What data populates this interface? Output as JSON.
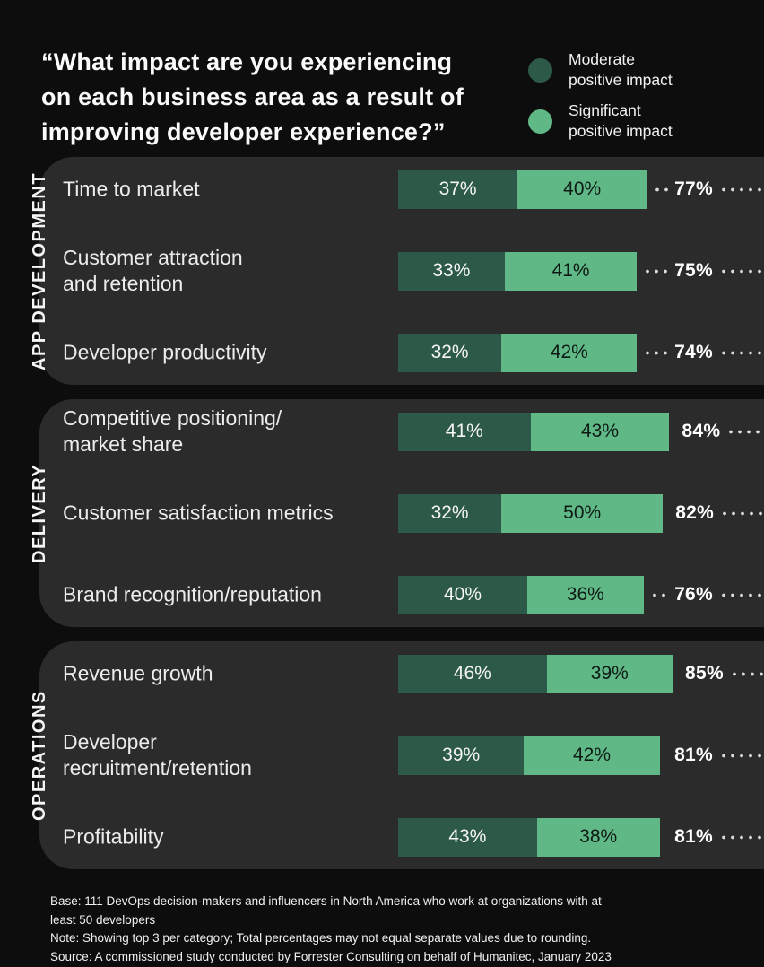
{
  "title": "“What impact are you experiencing\non each business area as a result of\nimproving developer experience?”",
  "legend": {
    "items": [
      {
        "icon": "moderate-swatch-circle",
        "label": "Moderate\npositive impact",
        "color": "#2d5a48"
      },
      {
        "icon": "significant-swatch-circle",
        "label": "Significant\npositive impact",
        "color": "#5fb886"
      }
    ]
  },
  "chart_data": {
    "type": "bar",
    "subtype": "horizontal-stacked",
    "unit": "percent",
    "axis_range": [
      0,
      100
    ],
    "grid": false,
    "legend_position": "top-right",
    "series_names": [
      "Moderate positive impact",
      "Significant positive impact"
    ],
    "series_colors": [
      "#2d5a48",
      "#5fb886"
    ],
    "groups": [
      {
        "name": "APP DEVELOPMENT",
        "rows": [
          {
            "label": "Time to market",
            "values": [
              37,
              40
            ],
            "value_labels": [
              "37%",
              "40%"
            ],
            "total": 77,
            "total_label": "77%"
          },
          {
            "label": "Customer attraction\nand retention",
            "values": [
              33,
              41
            ],
            "value_labels": [
              "33%",
              "41%"
            ],
            "total": 75,
            "total_label": "75%"
          },
          {
            "label": "Developer productivity",
            "values": [
              32,
              42
            ],
            "value_labels": [
              "32%",
              "42%"
            ],
            "total": 74,
            "total_label": "74%"
          }
        ]
      },
      {
        "name": "DELIVERY",
        "rows": [
          {
            "label": "Competitive positioning/\nmarket share",
            "values": [
              41,
              43
            ],
            "value_labels": [
              "41%",
              "43%"
            ],
            "total": 84,
            "total_label": "84%"
          },
          {
            "label": "Customer satisfaction metrics",
            "values": [
              32,
              50
            ],
            "value_labels": [
              "32%",
              "50%"
            ],
            "total": 82,
            "total_label": "82%"
          },
          {
            "label": "Brand recognition/reputation",
            "values": [
              40,
              36
            ],
            "value_labels": [
              "40%",
              "36%"
            ],
            "total": 76,
            "total_label": "76%"
          }
        ]
      },
      {
        "name": "OPERATIONS",
        "rows": [
          {
            "label": "Revenue growth",
            "values": [
              46,
              39
            ],
            "value_labels": [
              "46%",
              "39%"
            ],
            "total": 85,
            "total_label": "85%"
          },
          {
            "label": "Developer\nrecruitment/retention",
            "values": [
              39,
              42
            ],
            "value_labels": [
              "39%",
              "42%"
            ],
            "total": 81,
            "total_label": "81%"
          },
          {
            "label": "Profitability",
            "values": [
              43,
              38
            ],
            "value_labels": [
              "43%",
              "38%"
            ],
            "total": 81,
            "total_label": "81%"
          }
        ]
      }
    ]
  },
  "footer": {
    "lines": [
      "Base: 111 DevOps decision-makers and influencers in North America who work at organizations with at\nleast 50 developers",
      "Note: Showing top 3 per category; Total percentages may not equal separate values due to rounding.",
      "Source: A commissioned study conducted by Forrester Consulting on behalf of Humanitec, January 2023"
    ]
  }
}
